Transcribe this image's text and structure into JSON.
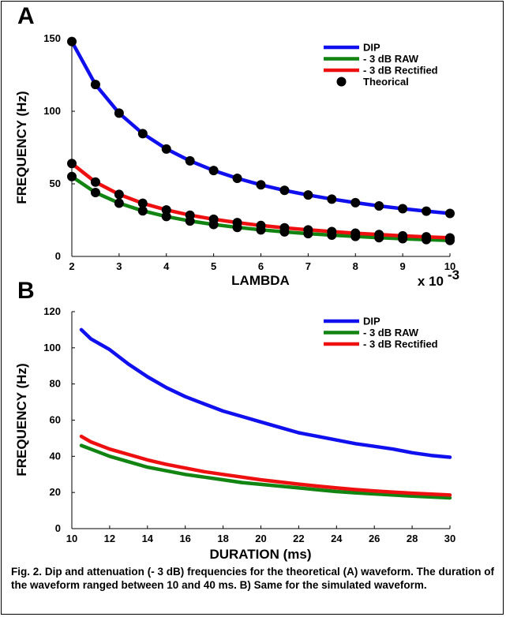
{
  "caption": "Fig. 2. Dip and attenuation (- 3 dB) frequencies for the theoretical (A) waveform. The duration of the waveform ranged between 10 and  40 ms. B) Same for the simulated waveform.",
  "colors": {
    "dip": "#1010ee",
    "raw": "#128412",
    "rectified": "#ee1010",
    "theorical": "#000000"
  },
  "chart_data": [
    {
      "panel_label": "A",
      "type": "line",
      "xlabel": "LAMBDA",
      "x_multiplier": "x 10",
      "x_multiplier_exp": "-3",
      "ylabel": "FREQUENCY (Hz)",
      "xlim": [
        2,
        10
      ],
      "ylim": [
        0,
        150
      ],
      "xticks": [
        2,
        3,
        4,
        5,
        6,
        7,
        8,
        9,
        10
      ],
      "yticks": [
        0,
        50,
        100,
        150
      ],
      "legend_position": "top-right",
      "x": [
        2,
        2.5,
        3,
        3.5,
        4,
        4.5,
        5,
        5.5,
        6,
        6.5,
        7,
        7.5,
        8,
        8.5,
        9,
        9.5,
        10
      ],
      "series": [
        {
          "name": "DIP",
          "color_key": "dip",
          "style": "line",
          "values": [
            148,
            118.4,
            98.7,
            84.6,
            74,
            65.8,
            59.2,
            53.8,
            49.3,
            45.5,
            42.3,
            39.5,
            37,
            34.8,
            32.9,
            31.2,
            29.6
          ]
        },
        {
          "name": "- 3 dB RAW",
          "color_key": "raw",
          "style": "line",
          "values": [
            55,
            44,
            36.7,
            31.4,
            27.5,
            24.4,
            22,
            20,
            18.3,
            16.9,
            15.7,
            14.7,
            13.8,
            12.9,
            12.2,
            11.6,
            11
          ]
        },
        {
          "name": "- 3 dB Rectified",
          "color_key": "rectified",
          "style": "line",
          "values": [
            64,
            51.2,
            42.7,
            36.6,
            32,
            28.4,
            25.6,
            23.3,
            21.3,
            19.7,
            18.3,
            17.1,
            16,
            15.1,
            14.2,
            13.5,
            12.8
          ]
        },
        {
          "name": "Theorical",
          "color_key": "theorical",
          "style": "markers",
          "on_series": [
            "DIP",
            "- 3 dB RAW",
            "- 3 dB Rectified"
          ]
        }
      ]
    },
    {
      "panel_label": "B",
      "type": "line",
      "xlabel": "DURATION (ms)",
      "ylabel": "FREQUENCY (Hz)",
      "xlim": [
        10,
        30
      ],
      "ylim": [
        0,
        120
      ],
      "xticks": [
        10,
        12,
        14,
        16,
        18,
        20,
        22,
        24,
        26,
        28,
        30
      ],
      "yticks": [
        0,
        20,
        40,
        60,
        80,
        100,
        120
      ],
      "legend_position": "top-right",
      "x": [
        10.5,
        11,
        12,
        13,
        14,
        15,
        16,
        17,
        18,
        19,
        20,
        21,
        22,
        23,
        24,
        25,
        26,
        27,
        28,
        29,
        30
      ],
      "series": [
        {
          "name": "DIP",
          "color_key": "dip",
          "style": "line",
          "values": [
            110,
            105,
            99,
            91,
            84,
            78,
            73,
            69,
            65,
            62,
            59,
            56,
            53,
            51,
            49,
            47,
            45.5,
            44,
            42,
            40.5,
            39.5
          ]
        },
        {
          "name": "- 3 dB RAW",
          "color_key": "raw",
          "style": "line",
          "values": [
            46,
            44,
            40,
            37,
            34,
            32,
            30,
            28.5,
            27,
            25.5,
            24.5,
            23.5,
            22.5,
            21.5,
            20.5,
            19.8,
            19.2,
            18.6,
            18,
            17.5,
            17
          ]
        },
        {
          "name": "- 3 dB Rectified",
          "color_key": "rectified",
          "style": "line",
          "values": [
            51,
            48,
            44,
            41,
            38,
            35.5,
            33.5,
            31.5,
            30,
            28.5,
            27,
            25.8,
            24.6,
            23.5,
            22.5,
            21.6,
            20.8,
            20.2,
            19.6,
            19.1,
            18.6
          ]
        }
      ]
    }
  ]
}
